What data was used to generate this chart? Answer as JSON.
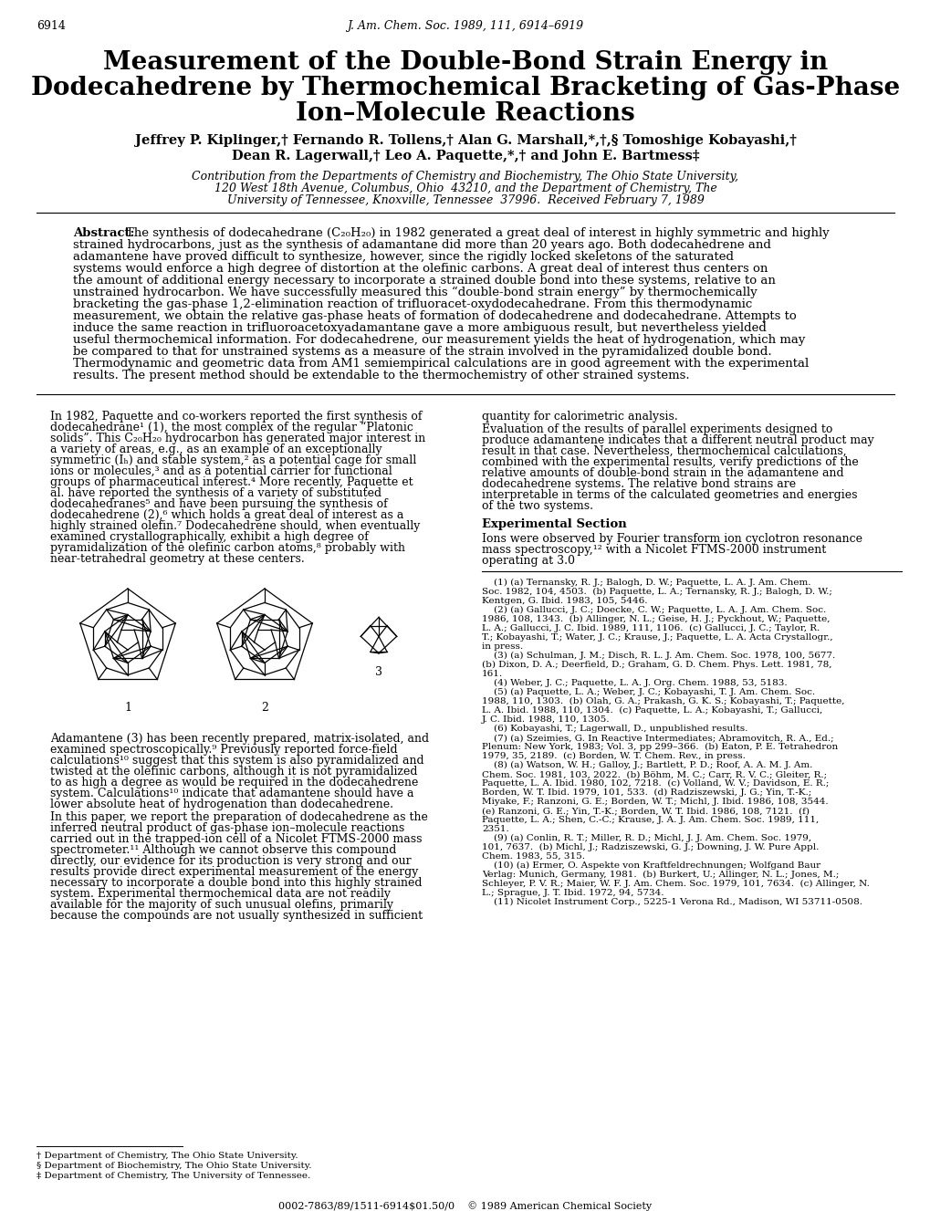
{
  "page_number": "6914",
  "journal_header": "J. Am. Chem. Soc. 1989, 111, 6914–6919",
  "title_line1": "Measurement of the Double-Bond Strain Energy in",
  "title_line2": "Dodecahedrene by Thermochemical Bracketing of Gas-Phase",
  "title_line3": "Ion–Molecule Reactions",
  "authors_line1": "Jeffrey P. Kiplinger,† Fernando R. Tollens,† Alan G. Marshall,*,†,§ Tomoshige Kobayashi,†",
  "authors_line2": "Dean R. Lagerwall,† Leo A. Paquette,*,† and John E. Bartmess‡",
  "affil1": "Contribution from the Departments of Chemistry and Biochemistry, The Ohio State University,",
  "affil2": "120 West 18th Avenue, Columbus, Ohio  43210, and the Department of Chemistry, The",
  "affil3": "University of Tennessee, Knoxville, Tennessee  37996.  Received February 7, 1989",
  "abstract_label": "Abstract:",
  "abstract_text": "  The synthesis of dodecahedrane (C₂₀H₂₀) in 1982 generated a great deal of interest in highly symmetric and highly strained hydrocarbons, just as the synthesis of adamantane did more than 20 years ago.  Both dodecahedrene and adamantene have proved difficult to synthesize, however, since the rigidly locked skeletons of the saturated systems would enforce a high degree of distortion at the olefinic carbons.  A great deal of interest thus centers on the amount of additional energy necessary to incorporate a strained double bond into these systems, relative to an unstrained hydrocarbon.  We have successfully measured this “double-bond strain energy” by thermochemically bracketing the gas-phase 1,2-elimination reaction of trifluoracet-oxydodecahedrane.  From this thermodynamic measurement, we obtain the relative gas-phase heats of formation of dodecahedrene and dodecahedrane.  Attempts to induce the same reaction in trifluoroacetoxyadamantane gave a more ambiguous result, but nevertheless yielded useful thermochemical information.  For dodecahedrene, our measurement yields the heat of hydrogenation, which may be compared to that for unstrained systems as a measure of the strain involved in the pyramidalized double bond. Thermodynamic and geometric data from AM1 semiempirical calculations are in good agreement with the experimental results. The present method should be extendable to the thermochemistry of other strained systems.",
  "col_left_para1": "    In 1982, Paquette and co-workers reported the first synthesis of dodecahedrane¹ (1), the most complex of the regular “Platonic solids”.  This C₂₀H₂₀ hydrocarbon has generated major interest in a variety of areas, e.g., as an example of an exceptionally symmetric (Iₕ) and stable system,² as a potential cage for small ions or molecules,³ and as a potential carrier for functional groups of pharmaceutical interest.⁴  More recently, Paquette et al. have reported the synthesis of a variety of substituted dodecahedranes⁵ and have been pursuing the synthesis of dodecahedrene (2),⁶ which holds a great deal of interest as a highly strained olefin.⁷  Dodecahedrene should, when eventually examined crystallographically, exhibit a high degree of pyramidalization of the olefinic carbon atoms,⁸ probably with near-tetrahedral geometry at these centers.",
  "col_left_para2": "    Adamantene (3) has been recently prepared, matrix-isolated, and examined spectroscopically.⁹  Previously reported force-field calculations¹⁰ suggest that this system is also pyramidalized and twisted at the olefinic carbons, although it is not pyramidalized to as high a degree as would be required in the dodecahedrene system.  Calculations¹⁰ indicate that adamantene should have a lower absolute heat of hydrogenation than dodecahedrene.",
  "col_left_para3": "    In this paper, we report the preparation of dodecahedrene as the inferred neutral product of gas-phase ion–molecule reactions carried out in the trapped-ion cell of a Nicolet FTMS-2000 mass spectrometer.¹¹  Although we cannot observe this compound directly, our evidence for its production is very strong and our results provide direct experimental measurement of the energy necessary to incorporate a double bond into this highly strained system.  Experimental thermochemical data are not readily available for the majority of such unusual olefins, primarily because the compounds are not usually synthesized in sufficient",
  "col_right_para1": "quantity for calorimetric analysis.",
  "col_right_para2": "    Evaluation of the results of parallel experiments designed to produce adamantene indicates that a different neutral product may result in that case.  Nevertheless, thermochemical calculations, combined with the experimental results, verify predictions of the relative amounts of double-bond strain in the adamantene and dodecahedrene systems.  The relative bond strains are interpretable in terms of the calculated geometries and energies of the two systems.",
  "exp_title": "Experimental Section",
  "exp_text": "    Ions were observed by Fourier transform ion cyclotron resonance mass spectroscopy,¹² with a Nicolet FTMS-2000 instrument operating at 3.0",
  "ref1a": "    (1) (a) Ternansky, R. J.; Balogh, D. W.; Paquette, L. A. J. Am. Chem.",
  "ref1b": "Soc. 1982, 104, 4503.  (b) Paquette, L. A.; Ternansky, R. J.; Balogh, D. W.;",
  "ref1c": "Kentgen, G. Ibid. 1983, 105, 5446.",
  "ref2a": "    (2) (a) Gallucci, J. C.; Doecke, C. W.; Paquette, L. A. J. Am. Chem. Soc.",
  "ref2b": "1986, 108, 1343.  (b) Allinger, N. L.; Geise, H. J.; Pyckhout, W.; Paquette,",
  "ref2c": "L. A.; Gallucci, J. C. Ibid. 1989, 111, 1106.  (c) Gallucci, J. C.; Taylor, R.",
  "ref2d": "T.; Kobayashi, T.; Water, J. C.; Krause, J.; Paquette, L. A. Acta Crystallogr.,",
  "ref2e": "in press.",
  "ref3a": "    (3) (a) Schulman, J. M.; Disch, R. L. J. Am. Chem. Soc. 1978, 100, 5677.",
  "ref3b": "(b) Dixon, D. A.; Deerfield, D.; Graham, G. D. Chem. Phys. Lett. 1981, 78,",
  "ref3c": "161.",
  "ref4": "    (4) Weber, J. C.; Paquette, L. A. J. Org. Chem. 1988, 53, 5183.",
  "ref5a": "    (5) (a) Paquette, L. A.; Weber, J. C.; Kobayashi, T. J. Am. Chem. Soc.",
  "ref5b": "1988, 110, 1303.  (b) Olah, G. A.; Prakash, G. K. S.; Kobayashi, T.; Paquette,",
  "ref5c": "L. A. Ibid. 1988, 110, 1304.  (c) Paquette, L. A.; Kobayashi, T.; Gallucci,",
  "ref5d": "J. C. Ibid. 1988, 110, 1305.",
  "ref6": "    (6) Kobayashi, T.; Lagerwall, D., unpublished results.",
  "ref7a": "    (7) (a) Szeimies, G. In Reactive Intermediates; Abramovitch, R. A., Ed.;",
  "ref7b": "Plenum: New York, 1983; Vol. 3, pp 299–366.  (b) Eaton, P. E. Tetrahedron",
  "ref7c": "1979, 35, 2189.  (c) Borden, W. T. Chem. Rev., in press.",
  "ref8a": "    (8) (a) Watson, W. H.; Galloy, J.; Bartlett, P. D.; Roof, A. A. M. J. Am.",
  "ref8b": "Chem. Soc. 1981, 103, 2022.  (b) Böhm, M. C.; Carr, R. V. C.; Gleiter, R.;",
  "ref8c": "Paquette, L. A. Ibid. 1980, 102, 7218.  (c) Volland, W. V.; Davidson, E. R.;",
  "ref8d": "Borden, W. T. Ibid. 1979, 101, 533.  (d) Radziszewski, J. G.; Yin, T.-K.;",
  "ref8e": "Miyake, F.; Ranzoni, G. E.; Borden, W. T.; Michl, J. Ibid. 1986, 108, 3544.",
  "ref8f": "(e) Ranzoni, G. E.; Yin, T.-K.; Borden, W. T. Ibid. 1986, 108, 7121.  (f)",
  "ref8g": "Paquette, L. A.; Shen, C.-C.; Krause, J. A. J. Am. Chem. Soc. 1989, 111,",
  "ref8h": "2351.",
  "ref9a": "    (9) (a) Conlin, R. T.; Miller, R. D.; Michl, J. J. Am. Chem. Soc. 1979,",
  "ref9b": "101, 7637.  (b) Michl, J.; Radziszewski, G. J.; Downing, J. W. Pure Appl.",
  "ref9c": "Chem. 1983, 55, 315.",
  "ref10a": "    (10) (a) Ermer, O. Aspekte von Kraftfeldrechnungen; Wolfgand Baur",
  "ref10b": "Verlag: Munich, Germany, 1981.  (b) Burkert, U.; Allinger, N. L.; Jones, M.;",
  "ref10c": "Schleyer, P. V. R.; Maier, W. F. J. Am. Chem. Soc. 1979, 101, 7634.  (c) Allinger, N.",
  "ref10d": "L.; Sprague, J. T. Ibid. 1972, 94, 5734.",
  "ref11": "    (11) Nicolet Instrument Corp., 5225-1 Verona Rd., Madison, WI 53711-0508.",
  "fn1": "† Department of Chemistry, The Ohio State University.",
  "fn2": "§ Department of Biochemistry, The Ohio State University.",
  "fn3": "‡ Department of Chemistry, The University of Tennessee.",
  "copyright": "0002-7863/89/1511-6914$01.50/0    © 1989 American Chemical Society",
  "bg": "#ffffff"
}
